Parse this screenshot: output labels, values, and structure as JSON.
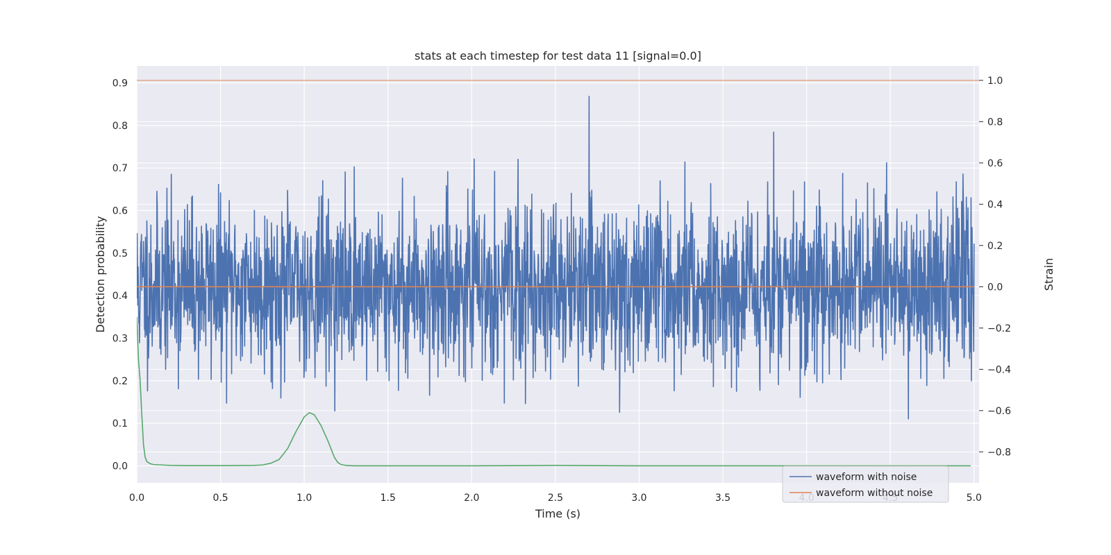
{
  "chart_data": {
    "type": "line",
    "title": "stats at each timestep for test data 11 [signal=0.0]",
    "xlabel": "Time (s)",
    "ylabel": "Detection probability",
    "y2label": "Strain",
    "xlim": [
      0.0,
      5.03
    ],
    "ylim": [
      -0.04,
      0.94
    ],
    "y2lim": [
      -0.95,
      1.07
    ],
    "xticks": [
      "0.0",
      "0.5",
      "1.0",
      "1.5",
      "2.0",
      "2.5",
      "3.0",
      "3.5",
      "4.0",
      "4.5",
      "5.0"
    ],
    "yticks": [
      "0.0",
      "0.1",
      "0.2",
      "0.3",
      "0.4",
      "0.5",
      "0.6",
      "0.7",
      "0.8",
      "0.9"
    ],
    "y2ticks": [
      "1.0",
      "0.8",
      "0.6",
      "0.4",
      "0.2",
      "0.0",
      "−0.2",
      "−0.4",
      "−0.6",
      "−0.8"
    ],
    "grid": true,
    "legend_position": "lower-right",
    "threshold": {
      "axis": "y2",
      "value": 1.0,
      "color": "#dd8452"
    },
    "series": [
      {
        "name": "waveform with noise",
        "axis": "y2",
        "color": "#4c72b0",
        "noise": {
          "points": 2500,
          "x_start": 0.0,
          "x_end": 5.0,
          "std": 0.2,
          "min": -0.93,
          "max": 1.0
        }
      },
      {
        "name": "waveform without noise",
        "axis": "y2",
        "color": "#dd8452",
        "x": [
          0.0,
          5.0
        ],
        "y": [
          0.0,
          0.0
        ]
      },
      {
        "axis": "y",
        "color": "#55a868",
        "x": [
          0.0,
          0.01,
          0.02,
          0.03,
          0.04,
          0.05,
          0.06,
          0.08,
          0.1,
          0.15,
          0.2,
          0.3,
          0.5,
          0.7,
          0.75,
          0.8,
          0.85,
          0.9,
          0.95,
          1.0,
          1.03,
          1.06,
          1.1,
          1.14,
          1.18,
          1.2,
          1.22,
          1.25,
          1.3,
          2.0,
          2.5,
          3.0,
          4.0,
          4.98
        ],
        "y": [
          0.35,
          0.25,
          0.2,
          0.12,
          0.05,
          0.02,
          0.01,
          0.005,
          0.003,
          0.002,
          0.001,
          0.0005,
          0.0005,
          0.001,
          0.002,
          0.006,
          0.015,
          0.04,
          0.08,
          0.115,
          0.125,
          0.12,
          0.095,
          0.06,
          0.02,
          0.008,
          0.003,
          0.001,
          0.0,
          0.0,
          0.001,
          0.0,
          0.0,
          0.0
        ]
      }
    ]
  }
}
